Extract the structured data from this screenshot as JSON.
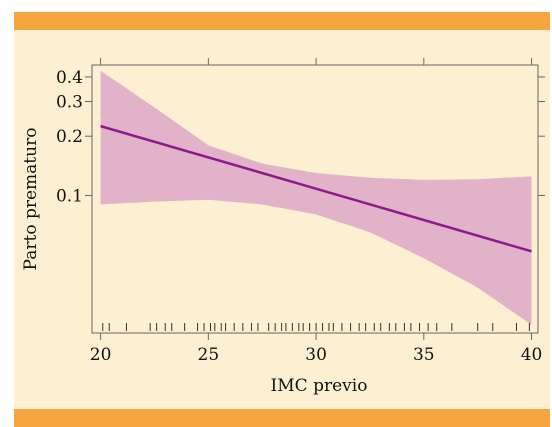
{
  "colors": {
    "background": "#fdf0d2",
    "banner": "#f7a540",
    "band": "#e2b2c9",
    "line": "#8b1a8c",
    "axis": "#666666"
  },
  "chart_data": {
    "type": "line",
    "xlabel": "IMC previo",
    "ylabel": "Parto prematuro",
    "xlim": [
      19.6,
      40.3
    ],
    "ylim": [
      0.02,
      0.46
    ],
    "yscale": "log",
    "x_ticks": [
      20,
      25,
      30,
      35,
      40
    ],
    "y_ticks": [
      0.1,
      0.2,
      0.3,
      0.4
    ],
    "x_tick_labels": [
      "20",
      "25",
      "30",
      "35",
      "40"
    ],
    "y_tick_labels": [
      "0.1",
      "0.2",
      "0.3",
      "0.4"
    ],
    "series": [
      {
        "x": [
          20,
          40
        ],
        "y": [
          0.225,
          0.052
        ]
      }
    ],
    "band": {
      "x": [
        20,
        22.5,
        25,
        27.5,
        30,
        32.5,
        35,
        37.5,
        40
      ],
      "upper": [
        0.43,
        0.28,
        0.18,
        0.145,
        0.13,
        0.123,
        0.12,
        0.121,
        0.125
      ],
      "lower": [
        0.09,
        0.093,
        0.095,
        0.09,
        0.08,
        0.065,
        0.048,
        0.034,
        0.022
      ]
    },
    "rug": [
      20.1,
      20.4,
      21.2,
      22.3,
      22.6,
      23.0,
      23.3,
      23.9,
      24.5,
      24.8,
      25.1,
      25.3,
      25.6,
      25.8,
      26.2,
      26.6,
      27.0,
      27.3,
      27.8,
      28.1,
      28.4,
      28.6,
      28.9,
      29.2,
      29.4,
      29.7,
      30.0,
      30.3,
      30.6,
      30.8,
      31.2,
      31.6,
      32.0,
      32.3,
      32.7,
      33.0,
      33.4,
      33.7,
      34.1,
      34.4,
      34.8,
      35.2,
      35.6,
      36.3,
      37.5,
      38.2,
      39.3,
      39.9
    ],
    "grid": false,
    "legend": "none"
  }
}
